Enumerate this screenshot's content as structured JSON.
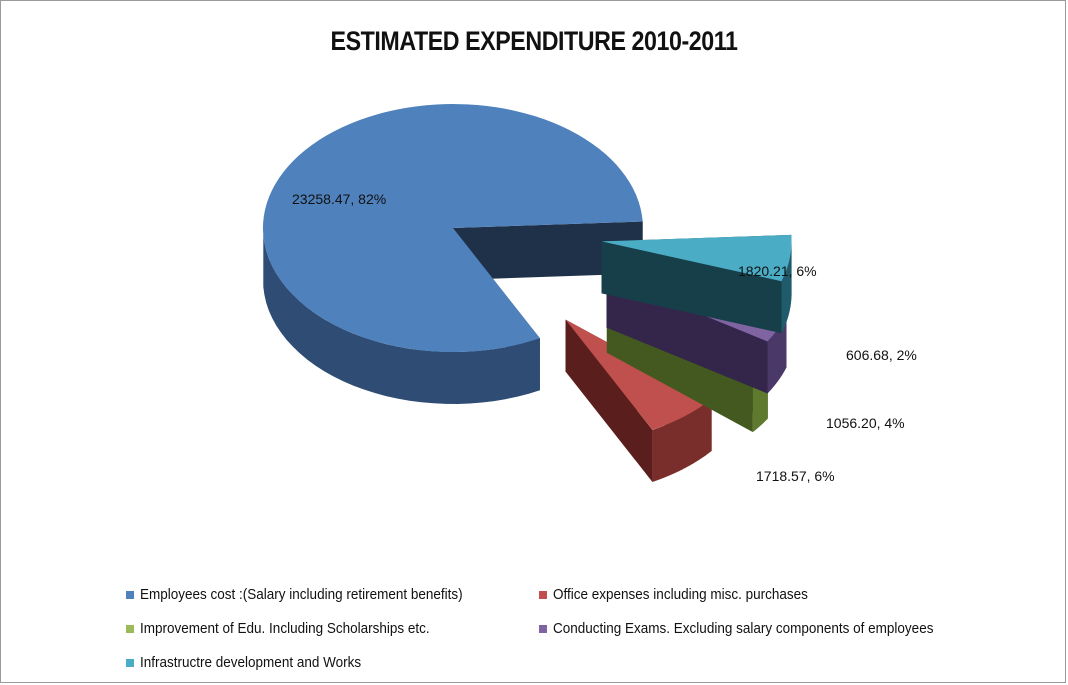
{
  "chart_data": {
    "type": "pie",
    "style": "3d-exploded",
    "title": "ESTIMATED EXPENDITURE 2010-2011",
    "legend_position": "bottom",
    "slices": [
      {
        "name": "Employees cost :(Salary including retirement benefits)",
        "value": 23258.47,
        "percent_label": "82%",
        "data_label": "23258.47, 82%",
        "color": "#4F81BD",
        "side_color": "#2E4C74",
        "cut_color": "#1F3148"
      },
      {
        "name": "Office expenses including misc. purchases",
        "value": 1820.21,
        "percent_label": "6%",
        "data_label": "1820.21, 6%",
        "color": "#C0504D",
        "side_color": "#7A2E2C",
        "cut_color": "#5A1E1C"
      },
      {
        "name": "Improvement of Edu. Including Scholarships etc.",
        "value": 606.68,
        "percent_label": "2%",
        "data_label": "606.68, 2%",
        "color": "#9BBB59",
        "side_color": "#5F7A2E",
        "cut_color": "#44591F"
      },
      {
        "name": "Conducting Exams. Excluding salary components of employees",
        "value": 1056.2,
        "percent_label": "4%",
        "data_label": "1056.20, 4%",
        "color": "#8064A2",
        "side_color": "#4A3868",
        "cut_color": "#33264A"
      },
      {
        "name": "Infrastructre development and Works",
        "value": 1718.57,
        "percent_label": "6%",
        "data_label": "1718.57, 6%",
        "color": "#4BACC6",
        "side_color": "#1F5B6A",
        "cut_color": "#173F4A"
      }
    ]
  }
}
